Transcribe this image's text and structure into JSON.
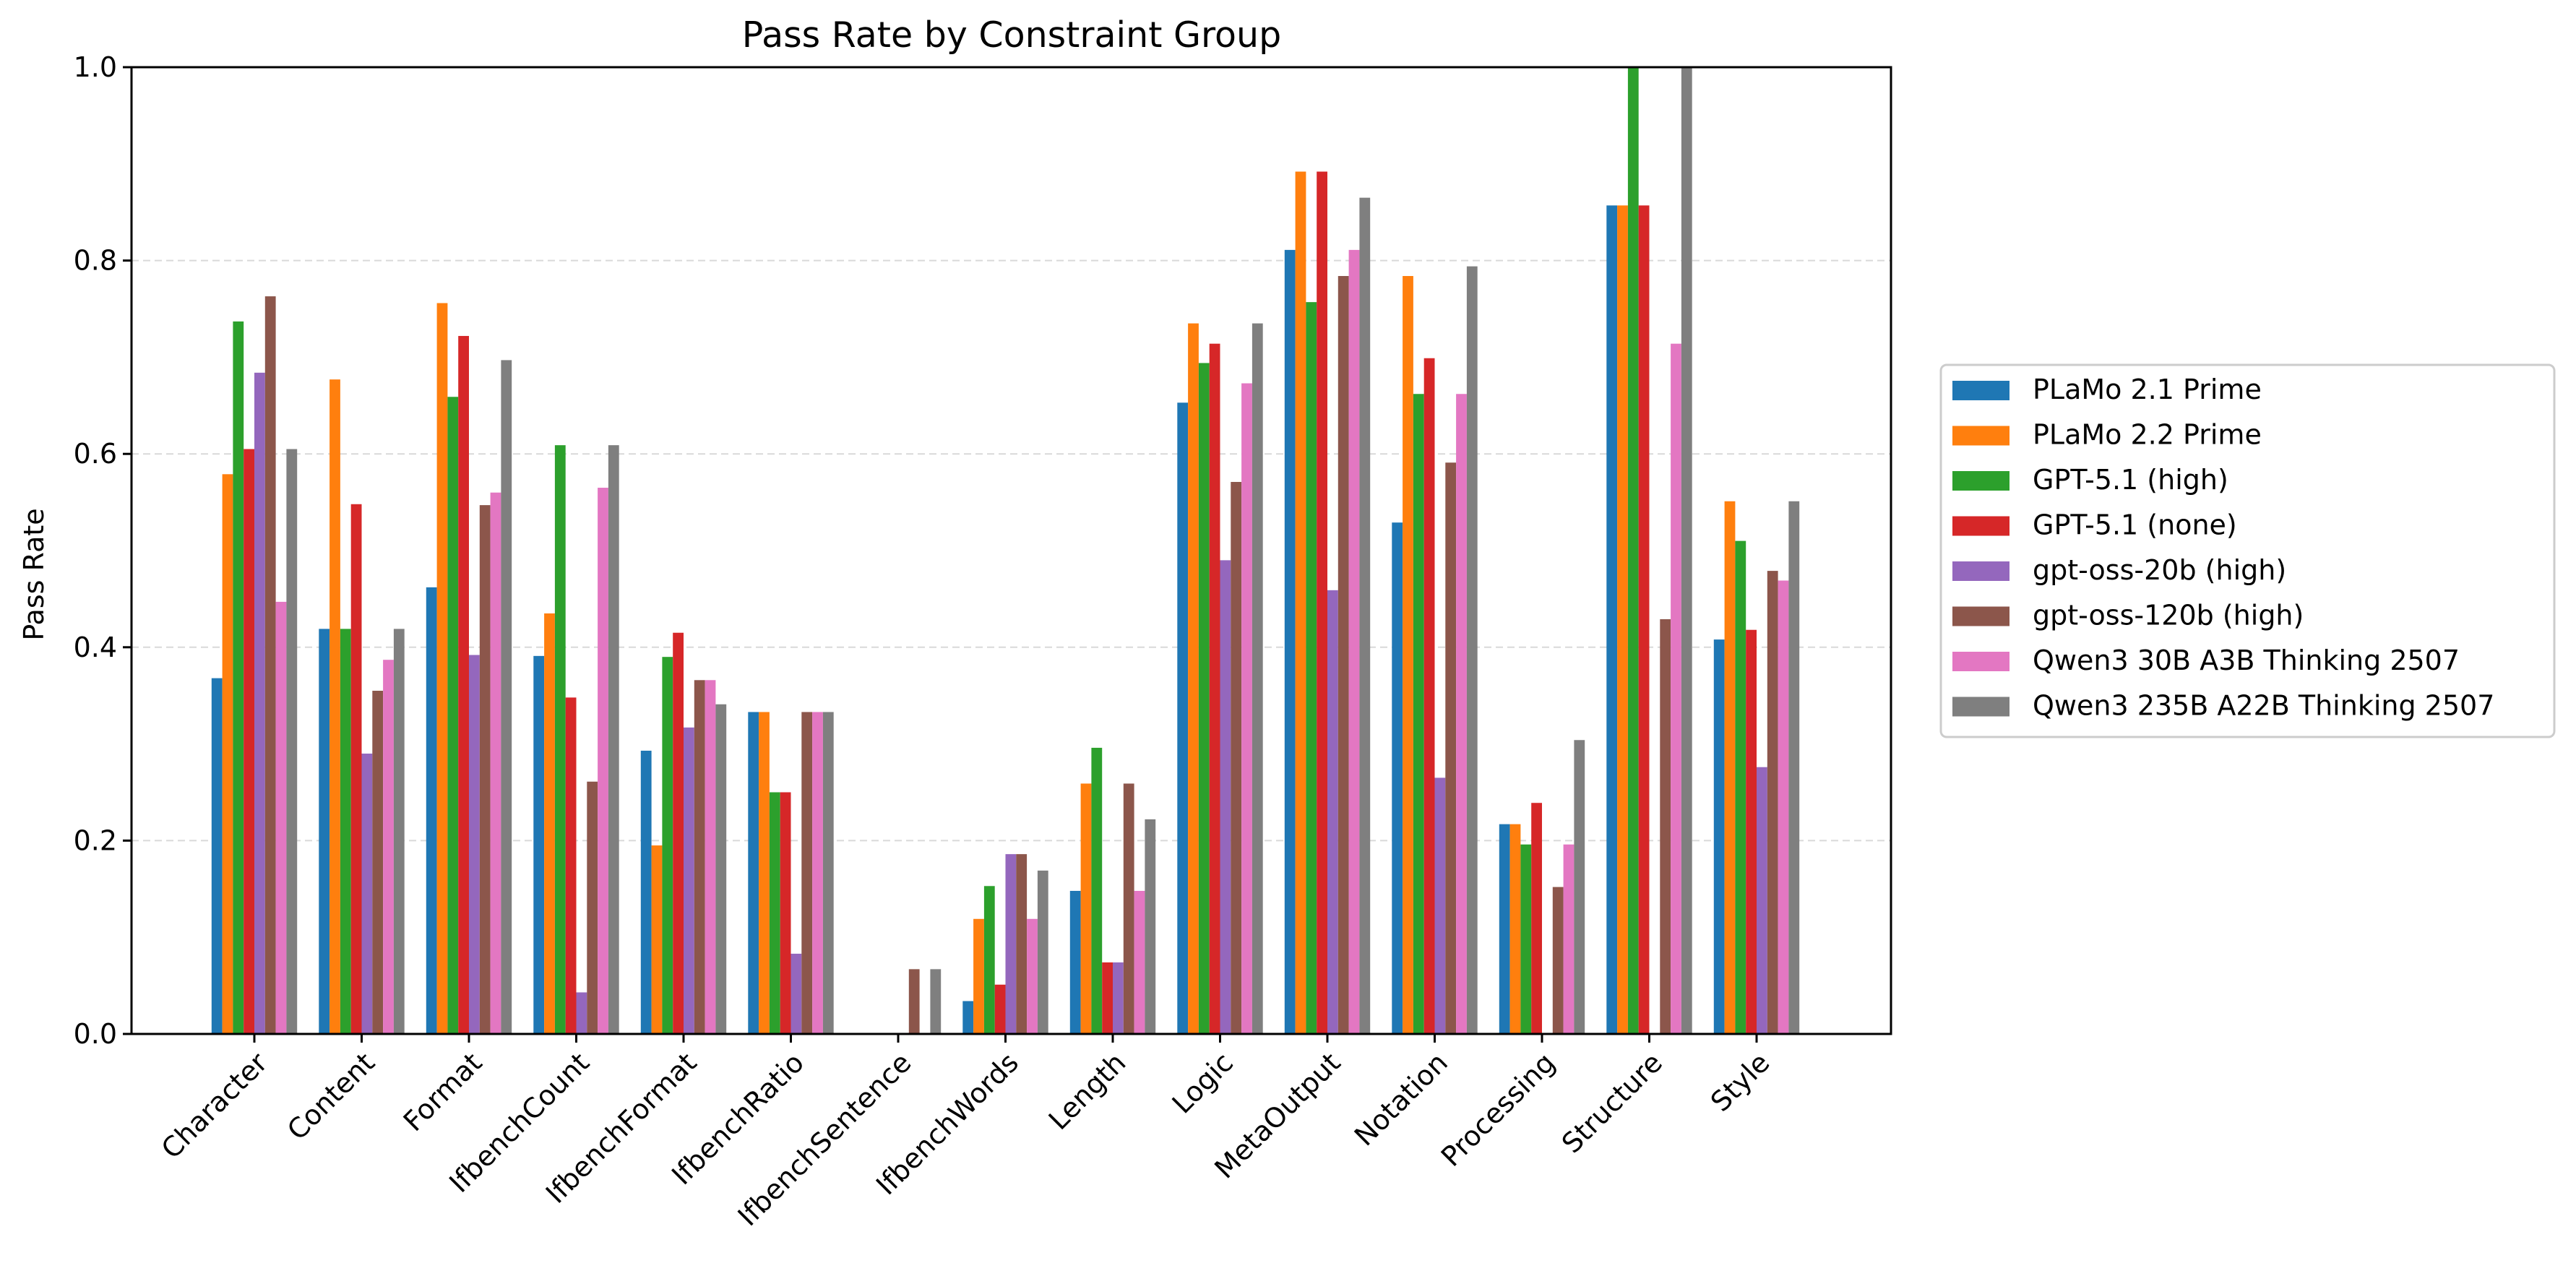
{
  "chart_data": {
    "type": "bar",
    "title": "Pass Rate by Constraint Group",
    "xlabel": "",
    "ylabel": "Pass Rate",
    "ylim": [
      0,
      1.0
    ],
    "yticks": [
      "0.0",
      "0.2",
      "0.4",
      "0.6",
      "0.8",
      "1.0"
    ],
    "grid": "y-dashed",
    "legend_placement": "right",
    "categories": [
      "Character",
      "Content",
      "Format",
      "IfbenchCount",
      "IfbenchFormat",
      "IfbenchRatio",
      "IfbenchSentence",
      "IfbenchWords",
      "Length",
      "Logic",
      "MetaOutput",
      "Notation",
      "Processing",
      "Structure",
      "Style"
    ],
    "series": [
      {
        "name": "PLaMo 2.1 Prime",
        "color": "#1f77b4",
        "values": [
          0.368,
          0.419,
          0.462,
          0.391,
          0.293,
          0.333,
          0.0,
          0.034,
          0.148,
          0.653,
          0.811,
          0.529,
          0.217,
          0.857,
          0.408
        ]
      },
      {
        "name": "PLaMo 2.2 Prime",
        "color": "#ff7f0e",
        "values": [
          0.579,
          0.677,
          0.756,
          0.435,
          0.195,
          0.333,
          0.0,
          0.119,
          0.259,
          0.735,
          0.892,
          0.784,
          0.217,
          0.857,
          0.551
        ]
      },
      {
        "name": "GPT-5.1 (high)",
        "color": "#2ca02c",
        "values": [
          0.737,
          0.419,
          0.659,
          0.609,
          0.39,
          0.25,
          0.0,
          0.153,
          0.296,
          0.694,
          0.757,
          0.662,
          0.196,
          1.0,
          0.51
        ]
      },
      {
        "name": "GPT-5.1 (none)",
        "color": "#d62728",
        "values": [
          0.605,
          0.548,
          0.722,
          0.348,
          0.415,
          0.25,
          0.0,
          0.051,
          0.074,
          0.714,
          0.892,
          0.699,
          0.239,
          0.857,
          0.418
        ]
      },
      {
        "name": "gpt-oss-20b (high)",
        "color": "#9467bd",
        "values": [
          0.684,
          0.29,
          0.392,
          0.043,
          0.317,
          0.083,
          0.0,
          0.186,
          0.074,
          0.49,
          0.459,
          0.265,
          0.0,
          0.0,
          0.276
        ]
      },
      {
        "name": "gpt-oss-120b (high)",
        "color": "#8c564b",
        "values": [
          0.763,
          0.355,
          0.547,
          0.261,
          0.366,
          0.333,
          0.067,
          0.186,
          0.259,
          0.571,
          0.784,
          0.591,
          0.152,
          0.429,
          0.479
        ]
      },
      {
        "name": "Qwen3 30B A3B Thinking 2507",
        "color": "#e377c2",
        "values": [
          0.447,
          0.387,
          0.56,
          0.565,
          0.366,
          0.333,
          0.0,
          0.119,
          0.148,
          0.673,
          0.811,
          0.662,
          0.196,
          0.714,
          0.469
        ]
      },
      {
        "name": "Qwen3 235B A22B Thinking 2507",
        "color": "#7f7f7f",
        "values": [
          0.605,
          0.419,
          0.697,
          0.609,
          0.341,
          0.333,
          0.067,
          0.169,
          0.222,
          0.735,
          0.865,
          0.794,
          0.304,
          1.0,
          0.551
        ]
      }
    ]
  }
}
